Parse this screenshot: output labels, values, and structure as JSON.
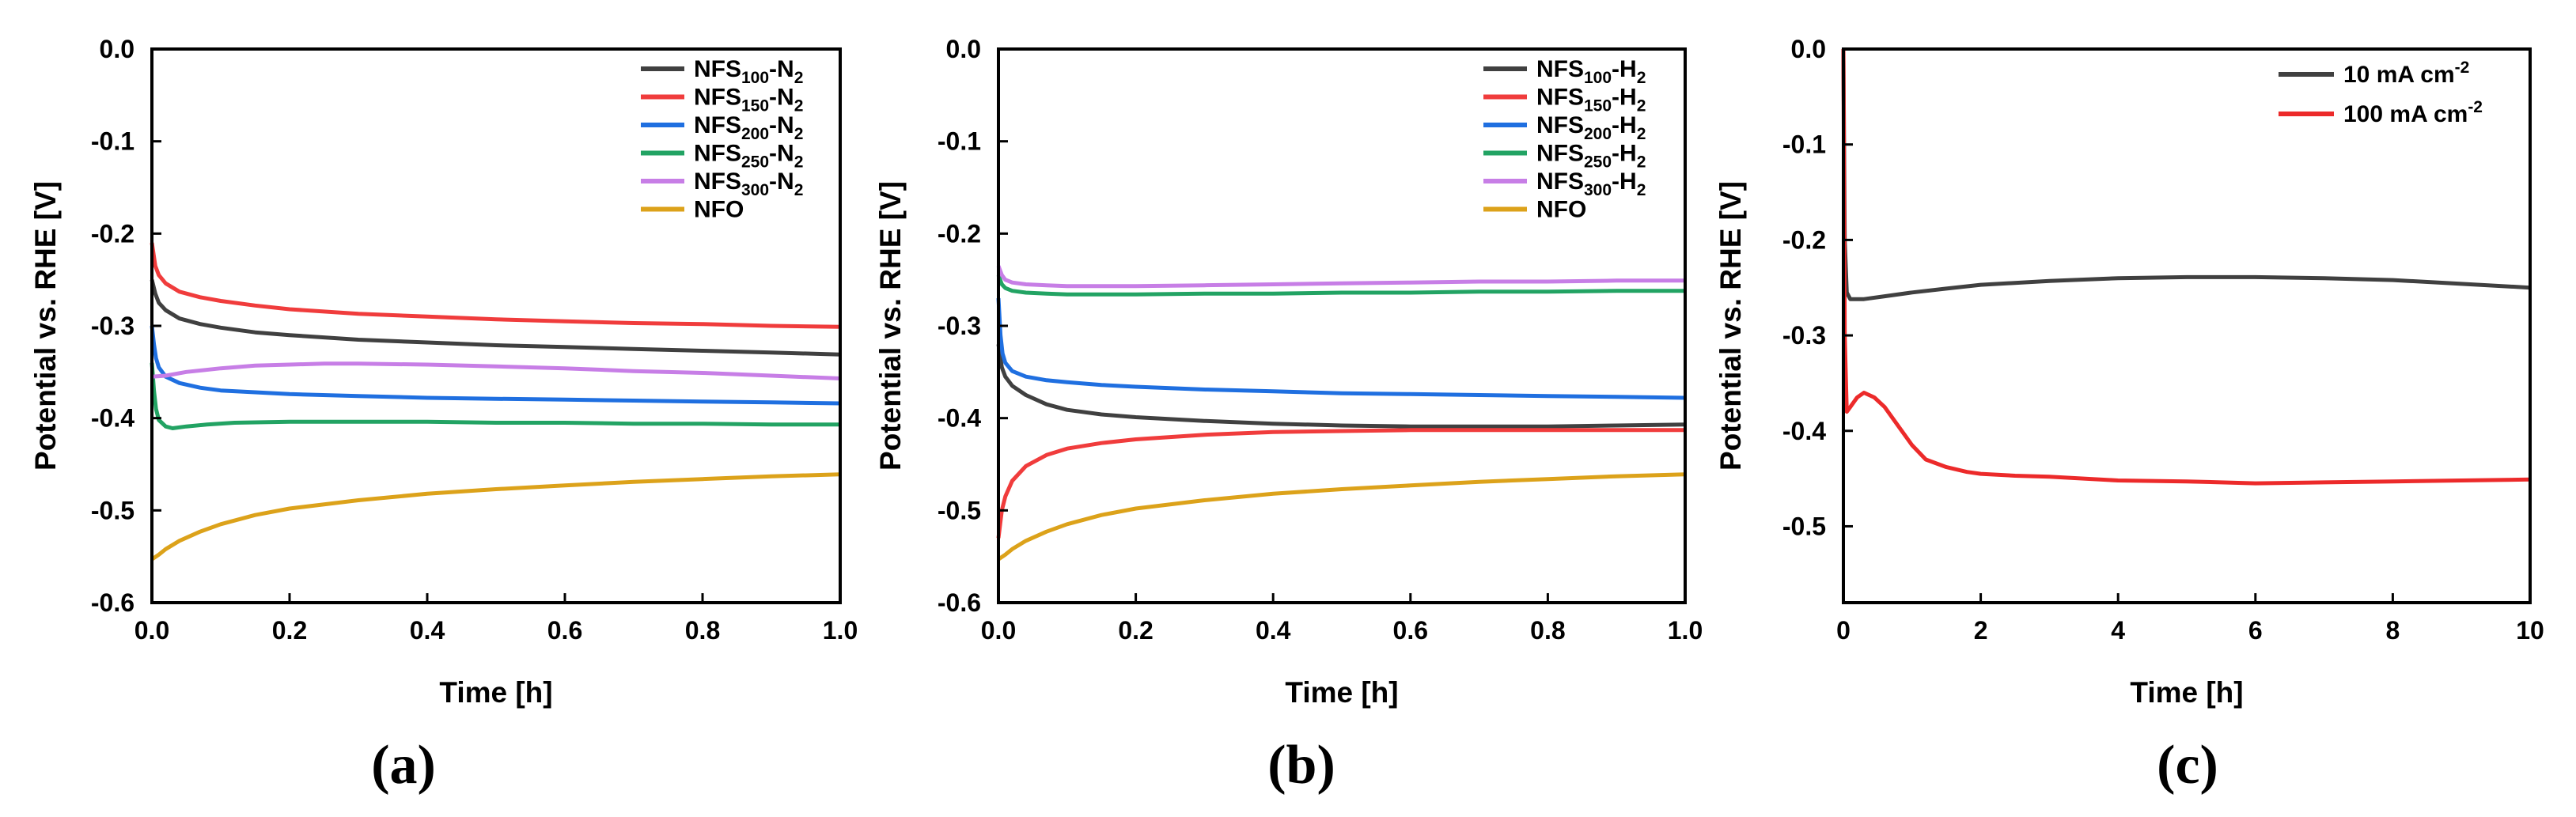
{
  "colors": {
    "black": "#404040",
    "red": "#f03c3c",
    "blue": "#1f6fe0",
    "green": "#22a363",
    "violet": "#c77ee6",
    "gold": "#dca21a",
    "red_c": "#ec2a2a"
  },
  "chart_data": [
    {
      "type": "line",
      "panel": "(a)",
      "xlabel": "Time [h]",
      "ylabel": "Potential vs. RHE [V]",
      "xlim": [
        0,
        1.0
      ],
      "ylim": [
        -0.6,
        0.0
      ],
      "xticks": [
        0.0,
        0.2,
        0.4,
        0.6,
        0.8,
        1.0
      ],
      "xtick_labels": [
        "0.0",
        "0.2",
        "0.4",
        "0.6",
        "0.8",
        "1.0"
      ],
      "yticks": [
        0.0,
        -0.1,
        -0.2,
        -0.3,
        -0.4,
        -0.5,
        -0.6
      ],
      "ytick_labels": [
        "0.0",
        "-0.1",
        "-0.2",
        "-0.3",
        "-0.4",
        "-0.5",
        "-0.6"
      ],
      "legend_position": "top-right",
      "series": [
        {
          "name": "NFS100-N2",
          "label": {
            "base": "NFS",
            "sub": "100",
            "mid": "-N",
            "sub2": "2"
          },
          "color": "black",
          "x": [
            0,
            0.005,
            0.01,
            0.02,
            0.04,
            0.07,
            0.1,
            0.15,
            0.2,
            0.3,
            0.4,
            0.5,
            0.6,
            0.7,
            0.8,
            0.9,
            1.0
          ],
          "y": [
            -0.25,
            -0.265,
            -0.275,
            -0.283,
            -0.292,
            -0.298,
            -0.302,
            -0.307,
            -0.31,
            -0.315,
            -0.318,
            -0.321,
            -0.323,
            -0.325,
            -0.327,
            -0.329,
            -0.331
          ]
        },
        {
          "name": "NFS150-N2",
          "label": {
            "base": "NFS",
            "sub": "150",
            "mid": "-N",
            "sub2": "2"
          },
          "color": "red",
          "x": [
            0,
            0.005,
            0.01,
            0.02,
            0.04,
            0.07,
            0.1,
            0.15,
            0.2,
            0.3,
            0.4,
            0.5,
            0.6,
            0.7,
            0.8,
            0.9,
            1.0
          ],
          "y": [
            -0.21,
            -0.235,
            -0.245,
            -0.254,
            -0.263,
            -0.269,
            -0.273,
            -0.278,
            -0.282,
            -0.287,
            -0.29,
            -0.293,
            -0.295,
            -0.297,
            -0.298,
            -0.3,
            -0.301
          ]
        },
        {
          "name": "NFS200-N2",
          "label": {
            "base": "NFS",
            "sub": "200",
            "mid": "-N",
            "sub2": "2"
          },
          "color": "blue",
          "x": [
            0,
            0.003,
            0.006,
            0.01,
            0.02,
            0.04,
            0.07,
            0.1,
            0.15,
            0.2,
            0.3,
            0.4,
            0.5,
            0.6,
            0.7,
            0.8,
            0.9,
            1.0
          ],
          "y": [
            -0.3,
            -0.32,
            -0.335,
            -0.345,
            -0.355,
            -0.362,
            -0.367,
            -0.37,
            -0.372,
            -0.374,
            -0.376,
            -0.378,
            -0.379,
            -0.38,
            -0.381,
            -0.382,
            -0.383,
            -0.384
          ]
        },
        {
          "name": "NFS250-N2",
          "label": {
            "base": "NFS",
            "sub": "250",
            "mid": "-N",
            "sub2": "2"
          },
          "color": "green",
          "x": [
            0,
            0.003,
            0.006,
            0.01,
            0.02,
            0.03,
            0.05,
            0.08,
            0.12,
            0.2,
            0.3,
            0.4,
            0.5,
            0.6,
            0.7,
            0.8,
            0.9,
            1.0
          ],
          "y": [
            -0.34,
            -0.37,
            -0.39,
            -0.402,
            -0.409,
            -0.411,
            -0.409,
            -0.407,
            -0.405,
            -0.404,
            -0.404,
            -0.404,
            -0.405,
            -0.405,
            -0.406,
            -0.406,
            -0.407,
            -0.407
          ]
        },
        {
          "name": "NFS300-N2",
          "label": {
            "base": "NFS",
            "sub": "300",
            "mid": "-N",
            "sub2": "2"
          },
          "color": "violet",
          "x": [
            0,
            0.02,
            0.05,
            0.1,
            0.15,
            0.2,
            0.25,
            0.3,
            0.4,
            0.5,
            0.6,
            0.7,
            0.8,
            0.9,
            1.0
          ],
          "y": [
            -0.355,
            -0.354,
            -0.35,
            -0.346,
            -0.343,
            -0.342,
            -0.341,
            -0.341,
            -0.342,
            -0.344,
            -0.346,
            -0.349,
            -0.351,
            -0.354,
            -0.357
          ]
        },
        {
          "name": "NFO",
          "label": {
            "base": "NFO",
            "sub": "",
            "mid": "",
            "sub2": ""
          },
          "color": "gold",
          "x": [
            0,
            0.01,
            0.02,
            0.04,
            0.07,
            0.1,
            0.15,
            0.2,
            0.3,
            0.4,
            0.5,
            0.6,
            0.7,
            0.8,
            0.9,
            1.0
          ],
          "y": [
            -0.553,
            -0.548,
            -0.542,
            -0.533,
            -0.523,
            -0.515,
            -0.505,
            -0.498,
            -0.489,
            -0.482,
            -0.477,
            -0.473,
            -0.469,
            -0.466,
            -0.463,
            -0.461
          ]
        }
      ]
    },
    {
      "type": "line",
      "panel": "(b)",
      "xlabel": "Time [h]",
      "ylabel": "Potential vs. RHE [V]",
      "xlim": [
        0,
        1.0
      ],
      "ylim": [
        -0.6,
        0.0
      ],
      "xticks": [
        0.0,
        0.2,
        0.4,
        0.6,
        0.8,
        1.0
      ],
      "xtick_labels": [
        "0.0",
        "0.2",
        "0.4",
        "0.6",
        "0.8",
        "1.0"
      ],
      "yticks": [
        0.0,
        -0.1,
        -0.2,
        -0.3,
        -0.4,
        -0.5,
        -0.6
      ],
      "ytick_labels": [
        "0.0",
        "-0.1",
        "-0.2",
        "-0.3",
        "-0.4",
        "-0.5",
        "-0.6"
      ],
      "legend_position": "top-right",
      "series": [
        {
          "name": "NFS100-H2",
          "label": {
            "base": "NFS",
            "sub": "100",
            "mid": "-H",
            "sub2": "2"
          },
          "color": "black",
          "x": [
            0,
            0.005,
            0.01,
            0.02,
            0.04,
            0.07,
            0.1,
            0.15,
            0.2,
            0.3,
            0.4,
            0.5,
            0.6,
            0.7,
            0.8,
            0.9,
            1.0
          ],
          "y": [
            -0.32,
            -0.345,
            -0.355,
            -0.365,
            -0.375,
            -0.385,
            -0.391,
            -0.396,
            -0.399,
            -0.403,
            -0.406,
            -0.408,
            -0.409,
            -0.409,
            -0.409,
            -0.408,
            -0.407
          ]
        },
        {
          "name": "NFS150-H2",
          "label": {
            "base": "NFS",
            "sub": "150",
            "mid": "-H",
            "sub2": "2"
          },
          "color": "red",
          "x": [
            0,
            0.005,
            0.01,
            0.02,
            0.04,
            0.07,
            0.1,
            0.15,
            0.2,
            0.3,
            0.4,
            0.5,
            0.6,
            0.7,
            0.8,
            0.9,
            1.0
          ],
          "y": [
            -0.53,
            -0.5,
            -0.485,
            -0.468,
            -0.452,
            -0.44,
            -0.433,
            -0.427,
            -0.423,
            -0.418,
            -0.415,
            -0.414,
            -0.413,
            -0.413,
            -0.413,
            -0.413,
            -0.413
          ]
        },
        {
          "name": "NFS200-H2",
          "label": {
            "base": "NFS",
            "sub": "200",
            "mid": "-H",
            "sub2": "2"
          },
          "color": "blue",
          "x": [
            0,
            0.003,
            0.006,
            0.01,
            0.02,
            0.04,
            0.07,
            0.1,
            0.15,
            0.2,
            0.3,
            0.4,
            0.5,
            0.6,
            0.7,
            0.8,
            0.9,
            1.0
          ],
          "y": [
            -0.27,
            -0.31,
            -0.33,
            -0.34,
            -0.349,
            -0.355,
            -0.359,
            -0.361,
            -0.364,
            -0.366,
            -0.369,
            -0.371,
            -0.373,
            -0.374,
            -0.375,
            -0.376,
            -0.377,
            -0.378
          ]
        },
        {
          "name": "NFS250-H2",
          "label": {
            "base": "NFS",
            "sub": "250",
            "mid": "-H",
            "sub2": "2"
          },
          "color": "green",
          "x": [
            0,
            0.005,
            0.01,
            0.02,
            0.04,
            0.07,
            0.1,
            0.15,
            0.2,
            0.3,
            0.4,
            0.5,
            0.6,
            0.7,
            0.8,
            0.9,
            1.0
          ],
          "y": [
            -0.245,
            -0.255,
            -0.259,
            -0.262,
            -0.264,
            -0.265,
            -0.266,
            -0.266,
            -0.266,
            -0.265,
            -0.265,
            -0.264,
            -0.264,
            -0.263,
            -0.263,
            -0.262,
            -0.262
          ]
        },
        {
          "name": "NFS300-H2",
          "label": {
            "base": "NFS",
            "sub": "300",
            "mid": "-H",
            "sub2": "2"
          },
          "color": "violet",
          "x": [
            0,
            0.005,
            0.01,
            0.02,
            0.04,
            0.07,
            0.1,
            0.15,
            0.2,
            0.3,
            0.4,
            0.5,
            0.6,
            0.7,
            0.8,
            0.9,
            1.0
          ],
          "y": [
            -0.235,
            -0.245,
            -0.25,
            -0.253,
            -0.255,
            -0.256,
            -0.257,
            -0.257,
            -0.257,
            -0.256,
            -0.255,
            -0.254,
            -0.253,
            -0.252,
            -0.252,
            -0.251,
            -0.251
          ]
        },
        {
          "name": "NFO",
          "label": {
            "base": "NFO",
            "sub": "",
            "mid": "",
            "sub2": ""
          },
          "color": "gold",
          "x": [
            0,
            0.01,
            0.02,
            0.04,
            0.07,
            0.1,
            0.15,
            0.2,
            0.3,
            0.4,
            0.5,
            0.6,
            0.7,
            0.8,
            0.9,
            1.0
          ],
          "y": [
            -0.553,
            -0.548,
            -0.542,
            -0.533,
            -0.523,
            -0.515,
            -0.505,
            -0.498,
            -0.489,
            -0.482,
            -0.477,
            -0.473,
            -0.469,
            -0.466,
            -0.463,
            -0.461
          ]
        }
      ]
    },
    {
      "type": "line",
      "panel": "(c)",
      "xlabel": "Time [h]",
      "ylabel": "Potential vs. RHE [V]",
      "xlim": [
        0,
        10
      ],
      "ylim": [
        -0.58,
        0.0
      ],
      "xticks": [
        0,
        2,
        4,
        6,
        8,
        10
      ],
      "xtick_labels": [
        "0",
        "2",
        "4",
        "6",
        "8",
        "10"
      ],
      "yticks": [
        0.0,
        -0.1,
        -0.2,
        -0.3,
        -0.4,
        -0.5
      ],
      "ytick_labels": [
        "0.0",
        "-0.1",
        "-0.2",
        "-0.3",
        "-0.4",
        "-0.5"
      ],
      "legend_position": "top-right",
      "series": [
        {
          "name": "10 mA cm-2",
          "label": {
            "base": "10 mA cm",
            "sup": "-2"
          },
          "color": "black",
          "x": [
            0,
            0.02,
            0.05,
            0.1,
            0.3,
            0.6,
            1,
            1.5,
            2,
            3,
            4,
            5,
            6,
            7,
            8,
            9,
            10
          ],
          "y": [
            0.0,
            -0.2,
            -0.255,
            -0.262,
            -0.262,
            -0.259,
            -0.255,
            -0.251,
            -0.247,
            -0.243,
            -0.24,
            -0.239,
            -0.239,
            -0.24,
            -0.242,
            -0.246,
            -0.25
          ]
        },
        {
          "name": "100 mA cm-2",
          "label": {
            "base": "100 mA cm",
            "sup": "-2"
          },
          "color": "red_c",
          "x": [
            0,
            0.02,
            0.05,
            0.1,
            0.2,
            0.3,
            0.45,
            0.6,
            0.8,
            1.0,
            1.2,
            1.5,
            1.8,
            2,
            2.5,
            3,
            4,
            5,
            6,
            7,
            8,
            9,
            10
          ],
          "y": [
            0.0,
            -0.3,
            -0.38,
            -0.375,
            -0.365,
            -0.36,
            -0.365,
            -0.375,
            -0.395,
            -0.415,
            -0.43,
            -0.438,
            -0.443,
            -0.445,
            -0.447,
            -0.448,
            -0.452,
            -0.453,
            -0.455,
            -0.454,
            -0.453,
            -0.452,
            -0.451
          ]
        }
      ]
    }
  ]
}
